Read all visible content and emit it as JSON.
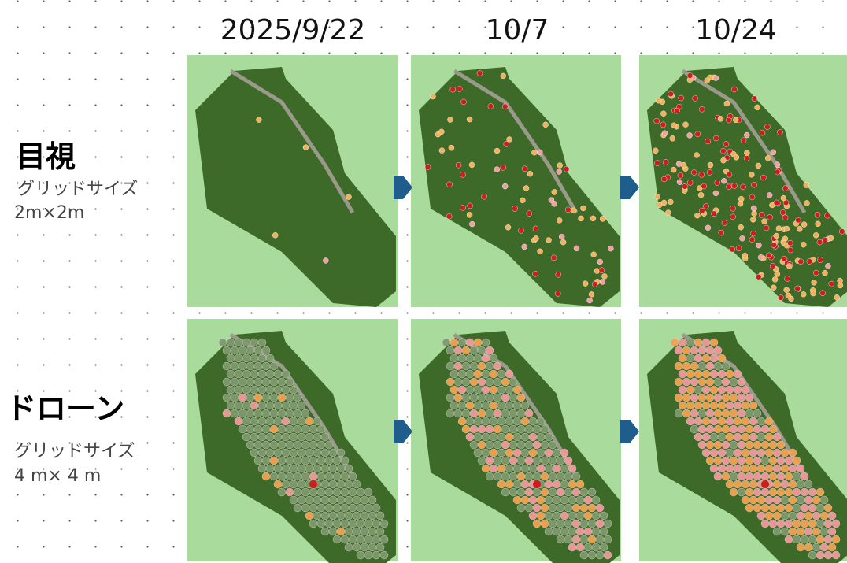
{
  "header": {
    "dates": [
      "2025/9/22",
      "10/7",
      "10/24"
    ]
  },
  "rows": [
    {
      "title": "目視",
      "subtitle": "グリッドサイズ",
      "size": "2m×2m"
    },
    {
      "title": "ドローン",
      "subtitle": "グリッドサイズ",
      "size": "4 m× 4 m"
    }
  ]
}
